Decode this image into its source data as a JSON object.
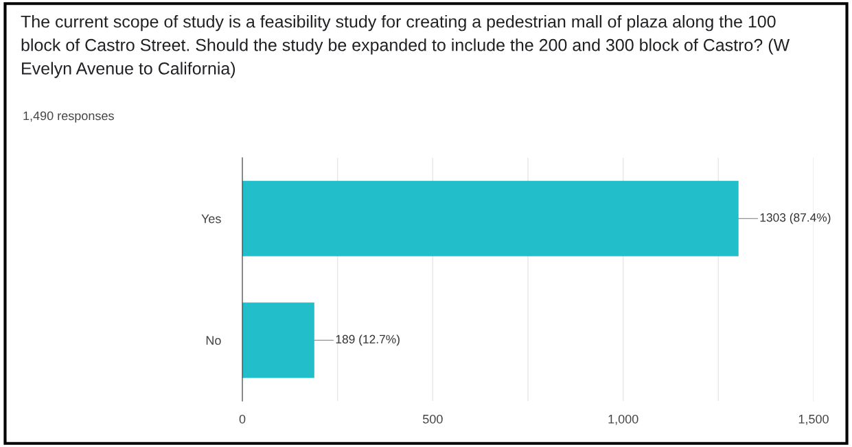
{
  "chart_data": {
    "type": "bar",
    "orientation": "horizontal",
    "title": "The current scope of study is a feasibility study for creating a pedestrian mall of plaza along the 100 block of Castro Street. Should the study be expanded to include the 200 and 300 block of Castro? (W Evelyn Avenue to California)",
    "subtitle": "1,490 responses",
    "categories": [
      "Yes",
      "No"
    ],
    "values": [
      1303,
      189
    ],
    "value_labels": [
      "1303 (87.4%)",
      "189 (12.7%)"
    ],
    "color": "#22bfca",
    "xlim": [
      0,
      1500
    ],
    "xticks": [
      0,
      {
        "value": 250,
        "label": null
      },
      500,
      {
        "value": 750,
        "label": null
      },
      {
        "value": 1000,
        "label": "1,000"
      },
      {
        "value": 1250,
        "label": null
      },
      {
        "value": 1500,
        "label": "1,500"
      }
    ],
    "grid": "x"
  }
}
